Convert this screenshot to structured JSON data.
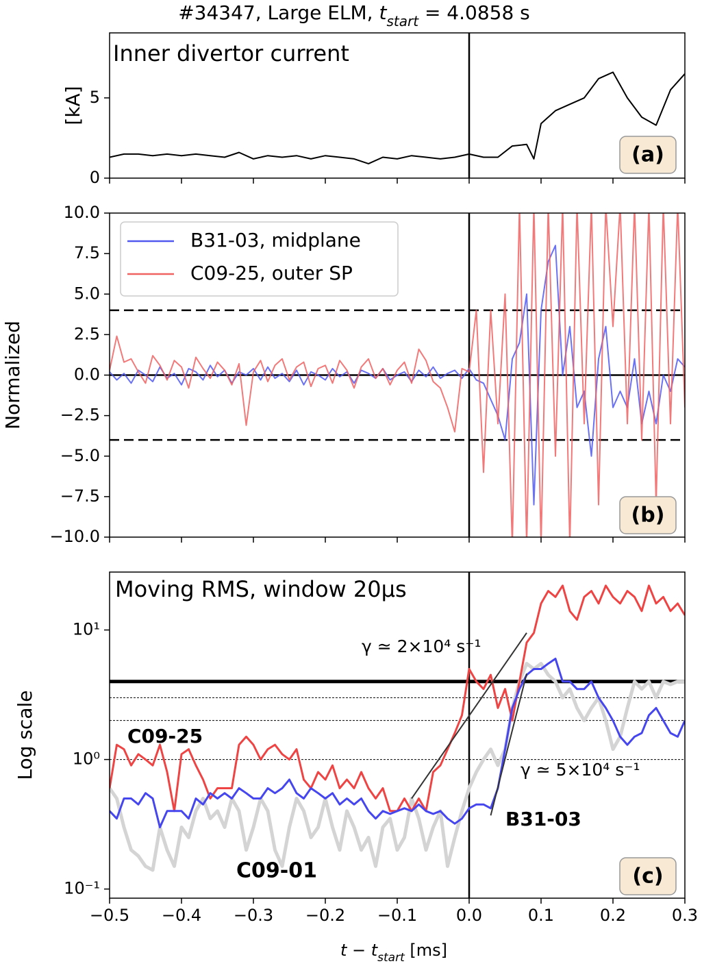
{
  "title_parts": [
    {
      "text": "#34347, Large ELM, "
    },
    {
      "text": "t",
      "style": "italic"
    },
    {
      "text": "start",
      "style": "sub"
    },
    {
      "text": " = 4.0858 s"
    }
  ],
  "chart_data": [
    {
      "type": "line",
      "ylabel": "[kA]",
      "annotations": [
        "Inner divertor current"
      ],
      "tag": "(a)",
      "xlim": [
        -0.5,
        0.3
      ],
      "xticks": [
        -0.5,
        -0.4,
        -0.3,
        -0.2,
        -0.1,
        0,
        0.1,
        0.2,
        0.3
      ],
      "ylim": [
        0,
        9.05
      ],
      "yticks": [
        0,
        5
      ],
      "vlines": [
        0
      ],
      "x": [
        -0.5,
        -0.48,
        -0.46,
        -0.44,
        -0.42,
        -0.4,
        -0.38,
        -0.36,
        -0.34,
        -0.32,
        -0.3,
        -0.28,
        -0.26,
        -0.24,
        -0.22,
        -0.2,
        -0.18,
        -0.16,
        -0.14,
        -0.12,
        -0.1,
        -0.08,
        -0.06,
        -0.04,
        -0.02,
        0,
        0.02,
        0.04,
        0.06,
        0.08,
        0.09,
        0.1,
        0.12,
        0.14,
        0.16,
        0.18,
        0.2,
        0.22,
        0.24,
        0.26,
        0.28,
        0.3
      ],
      "series": [
        {
          "color": "#000000",
          "values": [
            1.3,
            1.5,
            1.5,
            1.4,
            1.5,
            1.4,
            1.5,
            1.4,
            1.3,
            1.6,
            1.2,
            1.4,
            1.3,
            1.4,
            1.2,
            1.4,
            1.3,
            1.2,
            0.9,
            1.3,
            1.2,
            1.4,
            1.3,
            1.2,
            1.3,
            1.5,
            1.3,
            1.3,
            2.0,
            2.1,
            1.2,
            3.4,
            4.2,
            4.6,
            5.0,
            6.2,
            6.6,
            5.0,
            3.8,
            3.3,
            5.5,
            6.5
          ]
        }
      ]
    },
    {
      "type": "line",
      "ylabel": "Normalized",
      "tag": "(b)",
      "legend": "upper left",
      "xlim": [
        -0.5,
        0.3
      ],
      "xticks": [
        -0.5,
        -0.4,
        -0.3,
        -0.2,
        -0.1,
        0,
        0.1,
        0.2,
        0.3
      ],
      "ylim": [
        -10,
        10
      ],
      "yticks": [
        {
          "value": -10,
          "label": "−10.0"
        },
        {
          "value": -7.5,
          "label": "−7.5"
        },
        {
          "value": -5,
          "label": "−5.0"
        },
        {
          "value": -2.5,
          "label": "−2.5"
        },
        {
          "value": 0,
          "label": "0.0"
        },
        {
          "value": 2.5,
          "label": "2.5"
        },
        {
          "value": 5,
          "label": "5.0"
        },
        {
          "value": 7.5,
          "label": "7.5"
        },
        {
          "value": 10,
          "label": "10.0"
        }
      ],
      "hlines": [
        {
          "value": 4,
          "style": "dashed"
        },
        {
          "value": -4,
          "style": "dashed"
        },
        {
          "value": 0,
          "style": "solid"
        }
      ],
      "vlines": [
        0
      ],
      "x": [
        -0.5,
        -0.49,
        -0.48,
        -0.47,
        -0.46,
        -0.45,
        -0.44,
        -0.43,
        -0.42,
        -0.41,
        -0.4,
        -0.39,
        -0.38,
        -0.37,
        -0.36,
        -0.35,
        -0.34,
        -0.33,
        -0.32,
        -0.31,
        -0.3,
        -0.29,
        -0.28,
        -0.27,
        -0.26,
        -0.25,
        -0.24,
        -0.23,
        -0.22,
        -0.21,
        -0.2,
        -0.19,
        -0.18,
        -0.17,
        -0.16,
        -0.15,
        -0.14,
        -0.13,
        -0.12,
        -0.11,
        -0.1,
        -0.09,
        -0.08,
        -0.07,
        -0.06,
        -0.05,
        -0.04,
        -0.03,
        -0.02,
        -0.01,
        0,
        0.01,
        0.02,
        0.03,
        0.04,
        0.05,
        0.06,
        0.07,
        0.08,
        0.09,
        0.1,
        0.11,
        0.12,
        0.13,
        0.14,
        0.15,
        0.16,
        0.17,
        0.18,
        0.19,
        0.2,
        0.21,
        0.22,
        0.23,
        0.24,
        0.25,
        0.26,
        0.27,
        0.28,
        0.29,
        0.3
      ],
      "series": [
        {
          "name": "B31-03, midplane",
          "color": "#5058f0",
          "values": [
            0.2,
            -0.3,
            0.1,
            -0.5,
            0.3,
            0.0,
            -0.4,
            0.5,
            -0.2,
            0.1,
            -0.6,
            0.4,
            0.2,
            -0.3,
            0.6,
            -0.1,
            0.3,
            -0.5,
            0.2,
            0.0,
            0.4,
            -0.3,
            0.5,
            -0.2,
            0.1,
            -0.4,
            0.3,
            -0.6,
            0.2,
            0.0,
            -0.3,
            0.4,
            -0.1,
            0.2,
            -0.5,
            0.3,
            0.1,
            -0.2,
            0.4,
            -0.3,
            0.0,
            0.2,
            -0.4,
            0.3,
            -0.1,
            0.5,
            -0.2,
            0.1,
            0.3,
            -0.2,
            0.4,
            -0.3,
            -0.5,
            -1.5,
            -2.5,
            -4.0,
            1.0,
            2.0,
            5.0,
            -8.0,
            4.0,
            7.0,
            8.0,
            0.0,
            3.0,
            -2.0,
            -1.0,
            -5.0,
            1.0,
            3.0,
            -2.0,
            -1.0,
            -2.0,
            1.0,
            -3.0,
            -1.0,
            -3.0,
            0.0,
            -1.0,
            1.0,
            0.5
          ]
        },
        {
          "name": "C09-25, outer SP",
          "color": "#f06262",
          "values": [
            0.3,
            2.4,
            0.8,
            1.0,
            0.2,
            -0.5,
            1.2,
            0.6,
            -0.3,
            0.9,
            0.5,
            -0.8,
            1.1,
            0.4,
            -0.2,
            0.8,
            0.3,
            -0.6,
            0.7,
            -3.1,
            0.2,
            0.9,
            -0.4,
            0.6,
            1.0,
            -0.3,
            0.5,
            0.8,
            -0.7,
            0.4,
            0.6,
            -0.5,
            0.9,
            0.3,
            -0.8,
            0.5,
            1.0,
            -0.2,
            0.4,
            -0.6,
            0.3,
            0.8,
            -0.5,
            1.6,
            0.9,
            -0.4,
            -0.8,
            -2.0,
            -3.5,
            0.4,
            0.2,
            4.0,
            -6.0,
            4.0,
            -3.0,
            5.0,
            -10.5,
            10.5,
            -10.5,
            10.5,
            -10.5,
            10.5,
            -5.0,
            10.5,
            -10.5,
            10.5,
            -3.0,
            10.5,
            -8.0,
            10.5,
            3.0,
            10.5,
            -3.0,
            10.5,
            -4.0,
            10.5,
            -8.0,
            10.5,
            -3.0,
            10.5,
            -2.0
          ]
        }
      ]
    },
    {
      "type": "line",
      "yscale": "log",
      "ylabel": "Log scale",
      "tag": "(c)",
      "xlabel_parts": [
        {
          "text": "t − t",
          "style": "italic"
        },
        {
          "text": "start",
          "style": "sub"
        },
        {
          "text": " [ms]"
        }
      ],
      "annotations": [
        "Moving RMS, window 20μs",
        "γ ≃ 2×10⁴ s⁻¹",
        "γ ≃ 5×10⁴ s⁻¹",
        "C09-25",
        "B31-03",
        "C09-01"
      ],
      "xlim": [
        -0.5,
        0.3
      ],
      "xticks": [
        {
          "value": -0.5,
          "label": "−0.5"
        },
        {
          "value": -0.4,
          "label": "−0.4"
        },
        {
          "value": -0.3,
          "label": "−0.3"
        },
        {
          "value": -0.2,
          "label": "−0.2"
        },
        {
          "value": -0.1,
          "label": "−0.1"
        },
        {
          "value": 0,
          "label": "0.0"
        },
        {
          "value": 0.1,
          "label": "0.1"
        },
        {
          "value": 0.2,
          "label": "0.2"
        },
        {
          "value": 0.3,
          "label": "0.3"
        }
      ],
      "ylim": [
        0.085,
        28
      ],
      "yticks": [
        {
          "value": 0.1,
          "label": "10⁻¹"
        },
        {
          "value": 1,
          "label": "10⁰"
        },
        {
          "value": 10,
          "label": "10¹"
        }
      ],
      "hlines": [
        {
          "value": 4,
          "style": "thick"
        },
        {
          "value": 3,
          "style": "dotted"
        },
        {
          "value": 2,
          "style": "dotted"
        },
        {
          "value": 1,
          "style": "dotted"
        }
      ],
      "vlines": [
        0
      ],
      "fit_lines": [
        {
          "x": [
            -0.08,
            0.08
          ],
          "y": [
            0.5,
            9.5
          ]
        },
        {
          "x": [
            0.03,
            0.08
          ],
          "y": [
            0.37,
            4.6
          ]
        }
      ],
      "x": [
        -0.5,
        -0.49,
        -0.48,
        -0.47,
        -0.46,
        -0.45,
        -0.44,
        -0.43,
        -0.42,
        -0.41,
        -0.4,
        -0.39,
        -0.38,
        -0.37,
        -0.36,
        -0.35,
        -0.34,
        -0.33,
        -0.32,
        -0.31,
        -0.3,
        -0.29,
        -0.28,
        -0.27,
        -0.26,
        -0.25,
        -0.24,
        -0.23,
        -0.22,
        -0.21,
        -0.2,
        -0.19,
        -0.18,
        -0.17,
        -0.16,
        -0.15,
        -0.14,
        -0.13,
        -0.12,
        -0.11,
        -0.1,
        -0.09,
        -0.08,
        -0.07,
        -0.06,
        -0.05,
        -0.04,
        -0.03,
        -0.02,
        -0.01,
        0,
        0.01,
        0.02,
        0.03,
        0.04,
        0.05,
        0.06,
        0.07,
        0.08,
        0.09,
        0.1,
        0.11,
        0.12,
        0.13,
        0.14,
        0.15,
        0.16,
        0.17,
        0.18,
        0.19,
        0.2,
        0.21,
        0.22,
        0.23,
        0.24,
        0.25,
        0.26,
        0.27,
        0.28,
        0.29,
        0.3
      ],
      "series": [
        {
          "color": "#d4d4d4",
          "width": 5,
          "values": [
            0.6,
            0.5,
            0.3,
            0.2,
            0.18,
            0.15,
            0.14,
            0.3,
            0.2,
            0.15,
            0.3,
            0.25,
            0.4,
            0.5,
            0.35,
            0.4,
            0.3,
            0.5,
            0.4,
            0.2,
            0.3,
            0.5,
            0.4,
            0.2,
            0.15,
            0.3,
            0.5,
            0.4,
            0.25,
            0.3,
            0.5,
            0.3,
            0.2,
            0.4,
            0.3,
            0.2,
            0.25,
            0.15,
            0.3,
            0.35,
            0.2,
            0.25,
            0.5,
            0.35,
            0.2,
            0.3,
            0.4,
            0.15,
            0.25,
            0.4,
            0.6,
            0.8,
            1.0,
            1.2,
            0.9,
            1.2,
            2.5,
            4.0,
            5.5,
            5.0,
            5.5,
            4.5,
            4.0,
            3.0,
            3.5,
            2.5,
            2.0,
            2.5,
            3.0,
            2.0,
            1.2,
            1.5,
            2.5,
            4.0,
            3.5,
            4.0,
            3.0,
            4.0,
            3.8,
            4.0,
            4.0
          ]
        },
        {
          "color": "#ee4444",
          "width": 3,
          "values": [
            0.6,
            1.3,
            1.2,
            0.9,
            1.1,
            1.0,
            0.9,
            1.3,
            0.8,
            0.4,
            1.1,
            1.2,
            0.9,
            0.7,
            0.5,
            0.6,
            0.6,
            0.6,
            1.3,
            1.5,
            1.3,
            1.0,
            1.2,
            1.3,
            1.1,
            1.0,
            1.2,
            0.7,
            0.6,
            0.8,
            0.7,
            0.9,
            0.6,
            0.7,
            0.6,
            0.8,
            0.6,
            0.5,
            0.6,
            0.4,
            0.4,
            0.5,
            0.4,
            0.5,
            0.4,
            0.8,
            0.9,
            1.2,
            1.6,
            2.2,
            5.0,
            4.0,
            3.5,
            4.5,
            2.5,
            3.5,
            2.0,
            4.0,
            8.0,
            9.5,
            16,
            20,
            18,
            22,
            14,
            12,
            18,
            20,
            16,
            22,
            18,
            16,
            20,
            18,
            14,
            22,
            16,
            18,
            14,
            16,
            13
          ]
        },
        {
          "color": "#4646ee",
          "width": 3,
          "values": [
            0.4,
            0.35,
            0.5,
            0.5,
            0.45,
            0.55,
            0.5,
            0.3,
            0.4,
            0.4,
            0.4,
            0.35,
            0.5,
            0.45,
            0.55,
            0.5,
            0.55,
            0.5,
            0.6,
            0.55,
            0.5,
            0.5,
            0.6,
            0.55,
            0.6,
            0.7,
            0.55,
            0.5,
            0.6,
            0.55,
            0.5,
            0.55,
            0.45,
            0.5,
            0.45,
            0.5,
            0.4,
            0.35,
            0.4,
            0.38,
            0.4,
            0.42,
            0.4,
            0.45,
            0.4,
            0.38,
            0.4,
            0.35,
            0.32,
            0.35,
            0.42,
            0.45,
            0.45,
            0.42,
            0.6,
            1.2,
            2.5,
            3.5,
            4.5,
            5.0,
            5.0,
            5.5,
            6.0,
            4.0,
            4.0,
            3.5,
            3.5,
            4.0,
            3.0,
            2.5,
            2.0,
            1.5,
            1.3,
            1.5,
            1.6,
            2.2,
            2.5,
            2.0,
            1.6,
            1.5,
            2.0
          ]
        }
      ]
    }
  ]
}
